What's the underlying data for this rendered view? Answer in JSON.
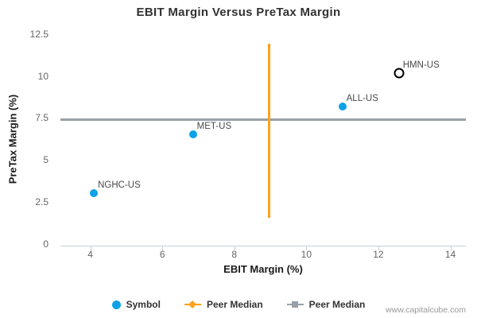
{
  "watermark": "www.capitalcube.com",
  "colors": {
    "symbol_blue": "#0DA2E8",
    "peer_median_orange": "#FFA21C",
    "peer_median_gray": "#9AA0A8",
    "open_marker_black": "#000000",
    "axis_line": "#C2D1DC",
    "title_text": "#333333",
    "tick_text": "#666666"
  },
  "chart_data": {
    "type": "scatter",
    "title": "EBIT Margin Versus PreTax Margin",
    "xlabel": "EBIT Margin (%)",
    "ylabel": "PreTax Margin (%)",
    "xlim": [
      3.17,
      14.43
    ],
    "ylim": [
      0,
      12.5
    ],
    "x_ticks": [
      4,
      6,
      8,
      10,
      12,
      14
    ],
    "y_ticks": [
      0,
      2.5,
      5,
      7.5,
      10,
      12.5
    ],
    "grid": false,
    "series": [
      {
        "name": "Symbol",
        "marker": "circle-filled",
        "color": "#0DA2E8",
        "points": [
          {
            "label": "NGHC-US",
            "x": 4.1,
            "y": 3.05
          },
          {
            "label": "MET-US",
            "x": 6.85,
            "y": 6.52
          },
          {
            "label": "ALL-US",
            "x": 11.0,
            "y": 8.18
          },
          {
            "label": "HMN-US",
            "x": 12.57,
            "y": 10.2,
            "marker": "circle-open",
            "color": "#000000"
          }
        ]
      }
    ],
    "reference_lines": [
      {
        "name": "Peer Median",
        "orientation": "vertical",
        "x": 8.96,
        "y_from": 1.56,
        "y_to": 11.94,
        "color": "#FFA21C"
      },
      {
        "name": "Peer Median",
        "orientation": "horizontal",
        "y": 7.42,
        "color": "#9AA0A8"
      }
    ],
    "legend": {
      "position": "bottom",
      "items": [
        {
          "label": "Symbol",
          "marker": "circle",
          "color": "#0DA2E8"
        },
        {
          "label": "Peer Median",
          "marker": "diamond-line",
          "color": "#FFA21C"
        },
        {
          "label": "Peer Median",
          "marker": "square-line",
          "color": "#9AA0A8"
        }
      ]
    }
  }
}
